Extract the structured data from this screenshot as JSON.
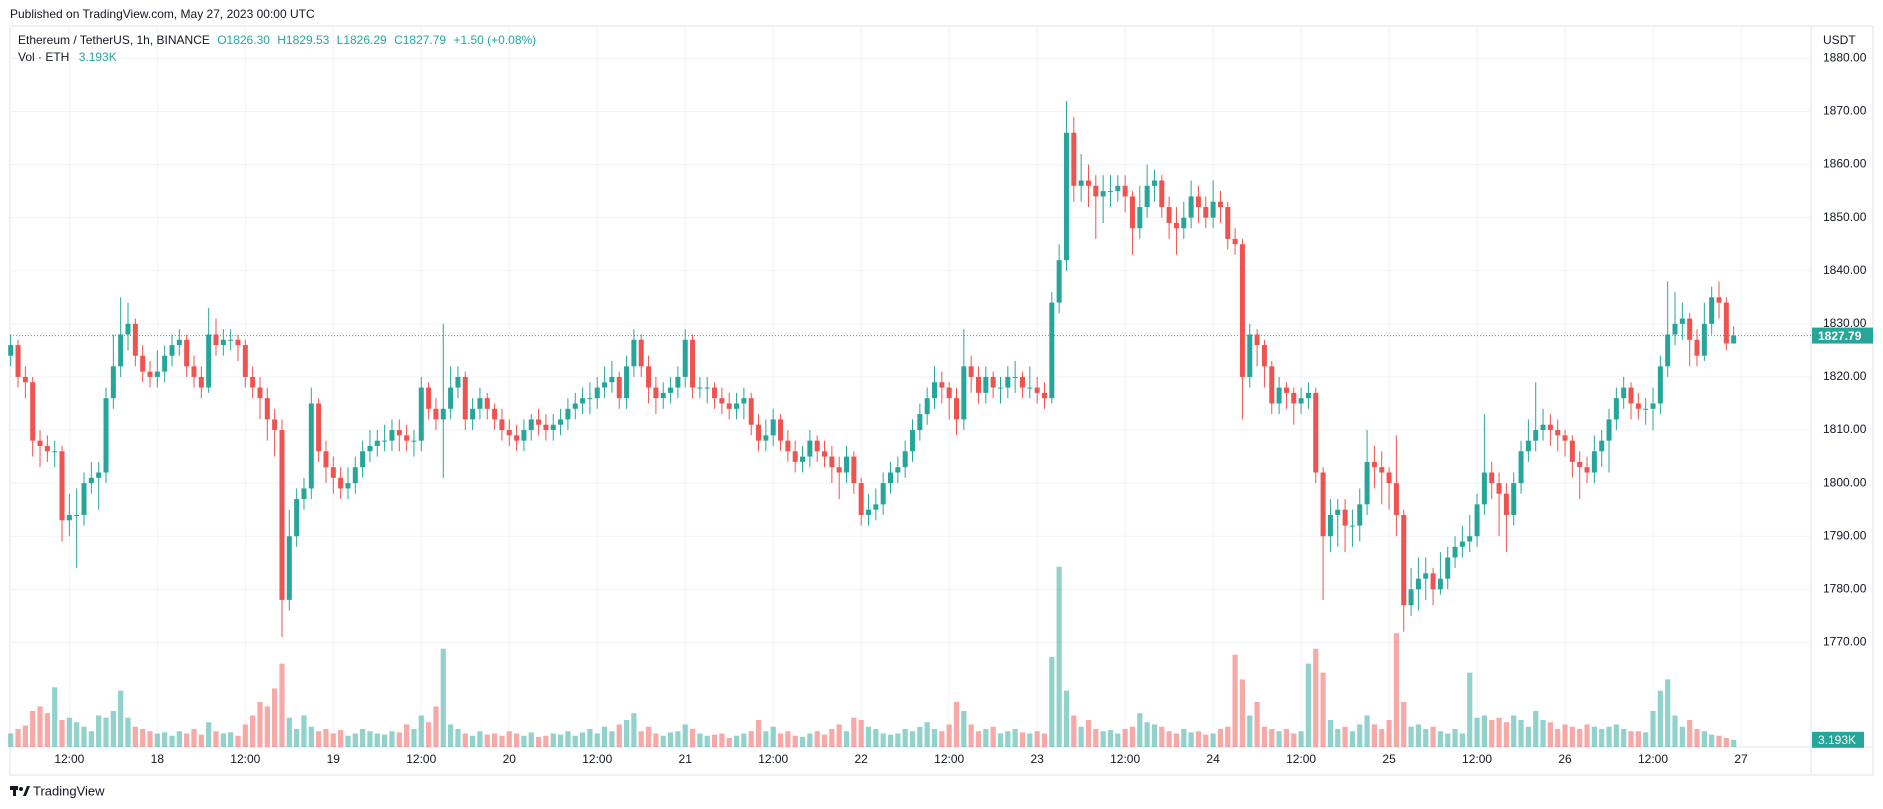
{
  "chart_data": {
    "type": "candlestick",
    "published": "Published on TradingView.com, May 27, 2023 00:00 UTC",
    "symbol": "Ethereum / TetherUS, 1h, BINANCE",
    "legend_open": "O1826.30",
    "legend_high": "H1829.53",
    "legend_low": "L1826.29",
    "legend_close": "C1827.79",
    "legend_change": "+1.50 (+0.08%)",
    "volume_title": "Vol · ETH",
    "volume_value_label": "3.193K",
    "currency": "USDT",
    "brand": "TradingView",
    "up_color": "#26a69a",
    "down_color": "#ef5350",
    "grid": true,
    "ylim": [
      1750.3,
      1886.1
    ],
    "yticks": [
      {
        "value": 1770,
        "label": "1770.00"
      },
      {
        "value": 1780,
        "label": "1780.00"
      },
      {
        "value": 1790,
        "label": "1790.00"
      },
      {
        "value": 1800,
        "label": "1800.00"
      },
      {
        "value": 1810,
        "label": "1810.00"
      },
      {
        "value": 1820,
        "label": "1820.00"
      },
      {
        "value": 1830,
        "label": "1830.00"
      },
      {
        "value": 1840,
        "label": "1840.00"
      },
      {
        "value": 1850,
        "label": "1850.00"
      },
      {
        "value": 1860,
        "label": "1860.00"
      },
      {
        "value": 1870,
        "label": "1870.00"
      },
      {
        "value": 1880,
        "label": "1880.00"
      }
    ],
    "volume_ylim": [
      0,
      320000
    ],
    "categories": [
      null,
      null,
      null,
      null,
      null,
      null,
      null,
      null,
      "12:00",
      null,
      null,
      null,
      null,
      null,
      null,
      null,
      null,
      null,
      null,
      null,
      "18",
      null,
      null,
      null,
      null,
      null,
      null,
      null,
      null,
      null,
      null,
      null,
      "12:00",
      null,
      null,
      null,
      null,
      null,
      null,
      null,
      null,
      null,
      null,
      null,
      "19",
      null,
      null,
      null,
      null,
      null,
      null,
      null,
      null,
      null,
      null,
      null,
      "12:00",
      null,
      null,
      null,
      null,
      null,
      null,
      null,
      null,
      null,
      null,
      null,
      "20",
      null,
      null,
      null,
      null,
      null,
      null,
      null,
      null,
      null,
      null,
      null,
      "12:00",
      null,
      null,
      null,
      null,
      null,
      null,
      null,
      null,
      null,
      null,
      null,
      "21",
      null,
      null,
      null,
      null,
      null,
      null,
      null,
      null,
      null,
      null,
      null,
      "12:00",
      null,
      null,
      null,
      null,
      null,
      null,
      null,
      null,
      null,
      null,
      null,
      "22",
      null,
      null,
      null,
      null,
      null,
      null,
      null,
      null,
      null,
      null,
      null,
      "12:00",
      null,
      null,
      null,
      null,
      null,
      null,
      null,
      null,
      null,
      null,
      null,
      "23",
      null,
      null,
      null,
      null,
      null,
      null,
      null,
      null,
      null,
      null,
      null,
      "12:00",
      null,
      null,
      null,
      null,
      null,
      null,
      null,
      null,
      null,
      null,
      null,
      "24",
      null,
      null,
      null,
      null,
      null,
      null,
      null,
      null,
      null,
      null,
      null,
      "12:00",
      null,
      null,
      null,
      null,
      null,
      null,
      null,
      null,
      null,
      null,
      null,
      "25",
      null,
      null,
      null,
      null,
      null,
      null,
      null,
      null,
      null,
      null,
      null,
      "12:00",
      null,
      null,
      null,
      null,
      null,
      null,
      null,
      null,
      null,
      null,
      null,
      "26",
      null,
      null,
      null,
      null,
      null,
      null,
      null,
      null,
      null,
      null,
      null,
      "12:00",
      null,
      null,
      null,
      null,
      null,
      null,
      null,
      null,
      null,
      null,
      null,
      "27"
    ],
    "open": [
      1824,
      1826,
      1820,
      1819,
      1808,
      1807,
      1806,
      1806,
      1793,
      1794,
      1794,
      1800,
      1801,
      1802,
      1816,
      1822,
      1828,
      1830,
      1824,
      1821,
      1820,
      1821,
      1824,
      1826,
      1827,
      1822,
      1820,
      1818,
      1828,
      1826,
      1827,
      1827,
      1826,
      1820,
      1818,
      1816,
      1812,
      1810,
      1778,
      1790,
      1797,
      1799,
      1815,
      1806,
      1803,
      1801,
      1799,
      1800,
      1803,
      1806,
      1807,
      1808,
      1808,
      1810,
      1809,
      1808,
      1808,
      1818,
      1814,
      1812,
      1814,
      1818,
      1820,
      1812,
      1814,
      1816,
      1814,
      1812,
      1810,
      1809,
      1808,
      1810,
      1812,
      1811,
      1810,
      1811,
      1812,
      1814,
      1815,
      1816,
      1816,
      1818,
      1819,
      1820,
      1816,
      1822,
      1827,
      1822,
      1818,
      1816,
      1817,
      1818,
      1820,
      1827,
      1818,
      1818,
      1818,
      1816,
      1815,
      1814,
      1815,
      1816,
      1811,
      1808,
      1809,
      1812,
      1808,
      1806,
      1804,
      1805,
      1808,
      1806,
      1805,
      1803,
      1802,
      1805,
      1800,
      1794,
      1795,
      1796,
      1800,
      1802,
      1803,
      1806,
      1810,
      1813,
      1816,
      1819,
      1818,
      1816,
      1812,
      1822,
      1820,
      1817,
      1820,
      1818,
      1818,
      1820,
      1820,
      1818,
      1818,
      1817,
      1816,
      1834,
      1842,
      1866,
      1856,
      1857,
      1856,
      1854,
      1855,
      1855,
      1856,
      1854,
      1848,
      1852,
      1856,
      1857,
      1852,
      1849,
      1848,
      1850,
      1854,
      1852,
      1850,
      1853,
      1852,
      1846,
      1845,
      1820,
      1828,
      1826,
      1822,
      1815,
      1818,
      1817,
      1815,
      1816,
      1817,
      1802,
      1790,
      1794,
      1795,
      1792,
      1792,
      1796,
      1804,
      1803,
      1802,
      1800,
      1794,
      1777,
      1780,
      1782,
      1783,
      1780,
      1782,
      1786,
      1788,
      1789,
      1790,
      1796,
      1802,
      1800,
      1798,
      1794,
      1800,
      1806,
      1808,
      1810,
      1811,
      1810,
      1809,
      1808,
      1804,
      1803,
      1802,
      1806,
      1808,
      1812,
      1816,
      1818,
      1815,
      1814,
      1814,
      1815,
      1822,
      1828,
      1830,
      1831,
      1827,
      1824,
      1830,
      1835,
      1834,
      1826.3,
      null
    ],
    "high": [
      1828,
      1827,
      1822,
      1820,
      1810,
      1809,
      1808,
      1807,
      1798,
      1799,
      1802,
      1804,
      1804,
      1818,
      1828,
      1835,
      1834,
      1831,
      1826,
      1823,
      1825,
      1826,
      1828,
      1829,
      1828,
      1824,
      1822,
      1833,
      1831,
      1829,
      1829,
      1828,
      1827,
      1822,
      1820,
      1818,
      1814,
      1812,
      1795,
      1799,
      1801,
      1818,
      1816,
      1808,
      1805,
      1803,
      1803,
      1805,
      1808,
      1810,
      1810,
      1811,
      1812,
      1812,
      1811,
      1810,
      1820,
      1819,
      1816,
      1830,
      1822,
      1822,
      1821,
      1816,
      1818,
      1817,
      1815,
      1814,
      1812,
      1811,
      1812,
      1813,
      1814,
      1813,
      1813,
      1814,
      1816,
      1817,
      1818,
      1819,
      1820,
      1822,
      1823,
      1821,
      1824,
      1829,
      1828,
      1824,
      1820,
      1819,
      1820,
      1822,
      1829,
      1828,
      1820,
      1820,
      1819,
      1818,
      1817,
      1817,
      1818,
      1817,
      1813,
      1812,
      1814,
      1813,
      1810,
      1808,
      1807,
      1810,
      1809,
      1808,
      1807,
      1805,
      1807,
      1806,
      1801,
      1798,
      1799,
      1802,
      1804,
      1805,
      1808,
      1812,
      1815,
      1818,
      1822,
      1821,
      1819,
      1818,
      1829,
      1824,
      1822,
      1822,
      1821,
      1820,
      1822,
      1823,
      1821,
      1822,
      1820,
      1819,
      1836,
      1845,
      1872,
      1869,
      1862,
      1860,
      1858,
      1858,
      1858,
      1858,
      1858,
      1855,
      1856,
      1860,
      1859,
      1858,
      1854,
      1852,
      1853,
      1857,
      1856,
      1854,
      1857,
      1855,
      1853,
      1848,
      1846,
      1830,
      1829,
      1827,
      1823,
      1820,
      1819,
      1818,
      1818,
      1819,
      1818,
      1803,
      1797,
      1797,
      1797,
      1795,
      1799,
      1810,
      1807,
      1806,
      1803,
      1809,
      1795,
      1784,
      1786,
      1786,
      1784,
      1787,
      1788,
      1790,
      1792,
      1794,
      1798,
      1813,
      1804,
      1802,
      1800,
      1802,
      1808,
      1812,
      1819,
      1814,
      1813,
      1812,
      1810,
      1809,
      1806,
      1805,
      1809,
      1810,
      1814,
      1818,
      1820,
      1819,
      1817,
      1816,
      1818,
      1824,
      1838,
      1836,
      1834,
      1832,
      1829,
      1834,
      1837,
      1838,
      1835,
      1829.53,
      null
    ],
    "low": [
      1822,
      1818,
      1816,
      1805,
      1803,
      1804,
      1803,
      1789,
      1790,
      1784,
      1792,
      1798,
      1795,
      1800,
      1814,
      1820,
      1825,
      1822,
      1819,
      1818,
      1818,
      1819,
      1822,
      1824,
      1820,
      1818,
      1816,
      1817,
      1824,
      1824,
      1825,
      1823,
      1818,
      1816,
      1812,
      1808,
      1805,
      1771,
      1776,
      1788,
      1795,
      1797,
      1804,
      1800,
      1798,
      1797,
      1797,
      1798,
      1801,
      1804,
      1805,
      1806,
      1806,
      1806,
      1806,
      1805,
      1806,
      1812,
      1810,
      1801,
      1812,
      1816,
      1810,
      1810,
      1812,
      1812,
      1810,
      1808,
      1807,
      1806,
      1806,
      1808,
      1809,
      1808,
      1808,
      1809,
      1810,
      1812,
      1813,
      1813,
      1814,
      1816,
      1817,
      1814,
      1814,
      1820,
      1820,
      1815,
      1813,
      1814,
      1815,
      1816,
      1818,
      1816,
      1816,
      1815,
      1814,
      1813,
      1812,
      1812,
      1812,
      1809,
      1806,
      1806,
      1807,
      1806,
      1804,
      1802,
      1802,
      1803,
      1804,
      1803,
      1800,
      1797,
      1800,
      1798,
      1792,
      1792,
      1793,
      1794,
      1798,
      1800,
      1801,
      1804,
      1808,
      1811,
      1814,
      1815,
      1812,
      1809,
      1810,
      1817,
      1815,
      1815,
      1816,
      1815,
      1816,
      1817,
      1816,
      1816,
      1815,
      1814,
      1815,
      1832,
      1840,
      1853,
      1853,
      1852,
      1846,
      1849,
      1852,
      1853,
      1851,
      1843,
      1846,
      1850,
      1853,
      1850,
      1846,
      1843,
      1846,
      1848,
      1849,
      1848,
      1848,
      1849,
      1844,
      1843,
      1812,
      1818,
      1822,
      1818,
      1813,
      1813,
      1814,
      1811,
      1813,
      1814,
      1800,
      1778,
      1787,
      1788,
      1787,
      1788,
      1789,
      1794,
      1799,
      1796,
      1795,
      1790,
      1772,
      1775,
      1776,
      1778,
      1777,
      1779,
      1780,
      1784,
      1786,
      1787,
      1788,
      1794,
      1797,
      1790,
      1787,
      1792,
      1798,
      1804,
      1806,
      1808,
      1807,
      1806,
      1805,
      1801,
      1797,
      1800,
      1800,
      1803,
      1802,
      1810,
      1814,
      1812,
      1812,
      1811,
      1810,
      1813,
      1820,
      1826,
      1827,
      1822,
      1822,
      1823,
      1828,
      1831,
      1825,
      1826.29,
      null
    ],
    "close": [
      1826,
      1820,
      1819,
      1808,
      1807,
      1806,
      1806,
      1793,
      1794,
      1794,
      1800,
      1801,
      1802,
      1816,
      1822,
      1828,
      1830,
      1824,
      1821,
      1820,
      1821,
      1824,
      1826,
      1827,
      1822,
      1820,
      1818,
      1828,
      1826,
      1827,
      1827,
      1826,
      1820,
      1818,
      1816,
      1812,
      1810,
      1778,
      1790,
      1797,
      1799,
      1815,
      1806,
      1803,
      1801,
      1799,
      1800,
      1803,
      1806,
      1807,
      1808,
      1808,
      1810,
      1809,
      1808,
      1808,
      1818,
      1814,
      1812,
      1814,
      1818,
      1820,
      1812,
      1814,
      1816,
      1814,
      1812,
      1810,
      1809,
      1808,
      1810,
      1812,
      1811,
      1810,
      1811,
      1812,
      1814,
      1815,
      1816,
      1816,
      1818,
      1819,
      1820,
      1816,
      1822,
      1827,
      1822,
      1818,
      1816,
      1817,
      1818,
      1820,
      1827,
      1818,
      1818,
      1818,
      1816,
      1815,
      1814,
      1815,
      1816,
      1811,
      1808,
      1809,
      1812,
      1808,
      1806,
      1804,
      1805,
      1808,
      1806,
      1805,
      1803,
      1802,
      1805,
      1800,
      1794,
      1795,
      1796,
      1800,
      1802,
      1803,
      1806,
      1810,
      1813,
      1816,
      1819,
      1818,
      1816,
      1812,
      1822,
      1820,
      1817,
      1820,
      1818,
      1818,
      1820,
      1820,
      1818,
      1818,
      1817,
      1816,
      1834,
      1842,
      1866,
      1856,
      1857,
      1856,
      1854,
      1855,
      1855,
      1856,
      1854,
      1848,
      1852,
      1856,
      1857,
      1852,
      1849,
      1848,
      1850,
      1854,
      1852,
      1850,
      1853,
      1852,
      1846,
      1845,
      1820,
      1828,
      1826,
      1822,
      1815,
      1818,
      1817,
      1815,
      1816,
      1817,
      1802,
      1790,
      1794,
      1795,
      1792,
      1792,
      1796,
      1804,
      1803,
      1802,
      1800,
      1794,
      1777,
      1780,
      1782,
      1783,
      1780,
      1782,
      1786,
      1788,
      1789,
      1790,
      1796,
      1802,
      1800,
      1798,
      1794,
      1800,
      1806,
      1808,
      1810,
      1811,
      1810,
      1809,
      1808,
      1804,
      1803,
      1802,
      1806,
      1808,
      1812,
      1816,
      1818,
      1815,
      1814,
      1814,
      1815,
      1822,
      1828,
      1830,
      1831,
      1827,
      1824,
      1830,
      1835,
      1834,
      1826.3,
      1827.79,
      null
    ],
    "volume": [
      6000,
      8000,
      9500,
      16000,
      18000,
      15000,
      26500,
      12000,
      13000,
      11000,
      9000,
      7000,
      14000,
      13000,
      16000,
      25000,
      13000,
      9000,
      8000,
      7000,
      6000,
      6500,
      5000,
      7000,
      6000,
      8000,
      5500,
      11000,
      7000,
      6000,
      6500,
      5000,
      10000,
      14000,
      20000,
      18000,
      26000,
      37000,
      13000,
      8000,
      14000,
      9000,
      7000,
      8000,
      6000,
      7500,
      5000,
      6000,
      8000,
      7000,
      6000,
      5500,
      7000,
      6500,
      10000,
      8000,
      14000,
      11000,
      18000,
      43600,
      10000,
      8000,
      6000,
      5000,
      7000,
      5500,
      6000,
      5000,
      7000,
      6000,
      5000,
      6500,
      4500,
      5000,
      6000,
      5500,
      7000,
      5000,
      6500,
      8000,
      6000,
      9000,
      7000,
      10000,
      12000,
      15000,
      7000,
      9000,
      6000,
      5000,
      6500,
      7000,
      10000,
      8000,
      6000,
      5000,
      5500,
      6000,
      4000,
      5000,
      6000,
      7000,
      12000,
      7000,
      9000,
      6000,
      7000,
      5000,
      4500,
      6000,
      7000,
      5500,
      8000,
      10000,
      7000,
      13000,
      12000,
      9000,
      8000,
      6000,
      5500,
      6000,
      8000,
      7000,
      9000,
      11000,
      8000,
      7000,
      10000,
      20000,
      16000,
      10000,
      7000,
      8000,
      9000,
      6000,
      7000,
      8000,
      6500,
      6000,
      7000,
      6000,
      40000,
      80000,
      25000,
      14000,
      9000,
      12000,
      8000,
      7000,
      7500,
      6000,
      8000,
      9000,
      15000,
      11000,
      10000,
      9000,
      7000,
      6000,
      8000,
      6500,
      7000,
      5500,
      6000,
      8000,
      9000,
      41000,
      30000,
      14000,
      20000,
      9000,
      8000,
      7000,
      8000,
      6000,
      7000,
      37000,
      43600,
      33000,
      12000,
      8000,
      9000,
      7000,
      10000,
      14000,
      10000,
      8000,
      12000,
      50500,
      20000,
      9000,
      10000,
      8000,
      9000,
      7000,
      6000,
      8000,
      6000,
      33000,
      13000,
      14000,
      12000,
      13000,
      11000,
      14000,
      12000,
      9000,
      16000,
      12000,
      11000,
      8000,
      10000,
      9000,
      8000,
      10000,
      9000,
      8000,
      9000,
      10000,
      8000,
      7000,
      7000,
      6500,
      16000,
      25000,
      30000,
      14000,
      9000,
      12000,
      8000,
      7000,
      5500,
      5000,
      4000,
      3193,
      null
    ]
  }
}
